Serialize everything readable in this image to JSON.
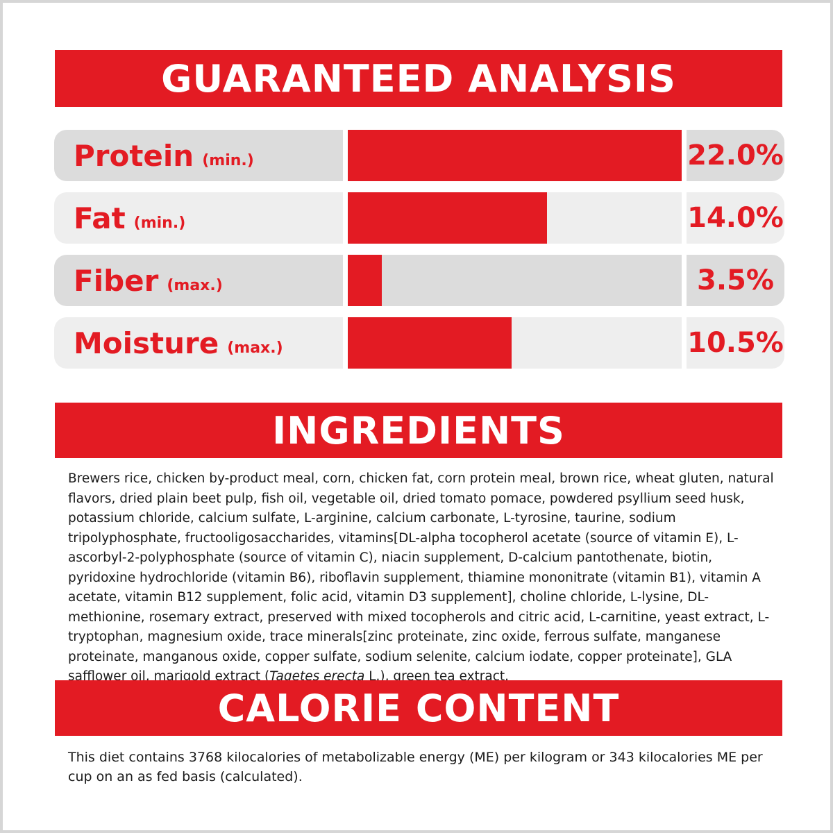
{
  "guaranteed_analysis": {
    "title": "GUARANTEED ANALYSIS",
    "rows": [
      {
        "name": "Protein",
        "qualifier": "(min.)",
        "value": "22.0%",
        "fill": 1.0
      },
      {
        "name": "Fat",
        "qualifier": "(min.)",
        "value": "14.0%",
        "fill": 0.596
      },
      {
        "name": "Fiber",
        "qualifier": "(max.)",
        "value": "3.5%",
        "fill": 0.102
      },
      {
        "name": "Moisture",
        "qualifier": "(max.)",
        "value": "10.5%",
        "fill": 0.491
      }
    ]
  },
  "ingredients": {
    "title": "INGREDIENTS",
    "text_before": "Brewers rice, chicken by-product meal, corn, chicken fat, corn protein meal, brown rice, wheat gluten, natural flavors, dried plain beet pulp, fish oil, vegetable oil, dried tomato pomace, powdered psyllium seed husk, potassium chloride, calcium sulfate, L-arginine, calcium carbonate, L-tyrosine, taurine, sodium tripolyphosphate, fructooligosaccharides, vitamins[DL-alpha tocopherol acetate (source of vitamin E), L-ascorbyl-2-polyphosphate (source of vitamin C), niacin supplement, D-calcium pantothenate, biotin, pyridoxine hydrochloride (vitamin B6), riboflavin supplement, thiamine mononitrate (vitamin B1), vitamin A acetate, vitamin B12 supplement, folic acid, vitamin D3 supplement], choline chloride, L-lysine, DL-methionine, rosemary extract, preserved with mixed tocopherols and citric acid, L-carnitine, yeast extract, L-tryptophan, magnesium oxide, trace minerals[zinc proteinate, zinc oxide, ferrous sulfate, manganese proteinate, manganous oxide, copper sulfate, sodium selenite, calcium iodate, copper proteinate], GLA safflower oil, marigold extract (",
    "text_italic": "Tagetes erecta",
    "text_after": " L.), green tea extract."
  },
  "calorie_content": {
    "title": "CALORIE CONTENT",
    "text": "This diet contains 3768 kilocalories of metabolizable energy (ME) per kilogram or 343 kilocalories ME per cup on an as fed basis (calculated)."
  },
  "colors": {
    "accent": "#e31b23",
    "row_dark": "#dcdcdc",
    "row_light": "#eeeeee",
    "border": "#d6d6d6"
  }
}
